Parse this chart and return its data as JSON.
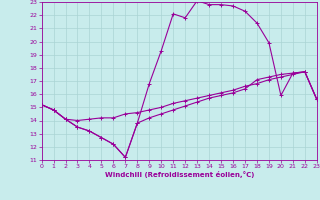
{
  "xlabel": "Windchill (Refroidissement éolien,°C)",
  "bg_color": "#c8ecec",
  "grid_color": "#aad4d4",
  "line_color": "#990099",
  "xlim": [
    0,
    23
  ],
  "ylim": [
    11,
    23
  ],
  "xticks": [
    0,
    1,
    2,
    3,
    4,
    5,
    6,
    7,
    8,
    9,
    10,
    11,
    12,
    13,
    14,
    15,
    16,
    17,
    18,
    19,
    20,
    21,
    22,
    23
  ],
  "yticks": [
    11,
    12,
    13,
    14,
    15,
    16,
    17,
    18,
    19,
    20,
    21,
    22,
    23
  ],
  "line1_x": [
    0,
    1,
    2,
    3,
    4,
    5,
    6,
    7,
    8,
    9,
    10,
    11,
    12,
    13,
    14,
    15,
    16,
    17,
    18,
    19,
    20,
    21,
    22,
    23
  ],
  "line1_y": [
    15.2,
    14.8,
    14.1,
    13.5,
    13.2,
    12.7,
    12.2,
    11.2,
    13.8,
    16.8,
    19.3,
    22.1,
    21.8,
    23.1,
    22.8,
    22.8,
    22.7,
    22.3,
    21.4,
    19.9,
    15.9,
    17.6,
    17.7,
    15.6
  ],
  "line2_x": [
    0,
    1,
    2,
    3,
    4,
    5,
    6,
    7,
    8,
    9,
    10,
    11,
    12,
    13,
    14,
    15,
    16,
    17,
    18,
    19,
    20,
    21,
    22,
    23
  ],
  "line2_y": [
    15.2,
    14.8,
    14.1,
    14.0,
    14.1,
    14.2,
    14.2,
    14.5,
    14.6,
    14.8,
    15.0,
    15.3,
    15.5,
    15.7,
    15.9,
    16.1,
    16.3,
    16.6,
    16.8,
    17.1,
    17.3,
    17.5,
    17.7,
    15.6
  ],
  "line3_x": [
    0,
    1,
    2,
    3,
    4,
    5,
    6,
    7,
    8,
    9,
    10,
    11,
    12,
    13,
    14,
    15,
    16,
    17,
    18,
    19,
    20,
    21,
    22,
    23
  ],
  "line3_y": [
    15.2,
    14.8,
    14.1,
    13.5,
    13.2,
    12.7,
    12.2,
    11.2,
    13.8,
    14.2,
    14.5,
    14.8,
    15.1,
    15.4,
    15.7,
    15.9,
    16.1,
    16.4,
    17.1,
    17.3,
    17.5,
    17.6,
    17.7,
    15.6
  ]
}
